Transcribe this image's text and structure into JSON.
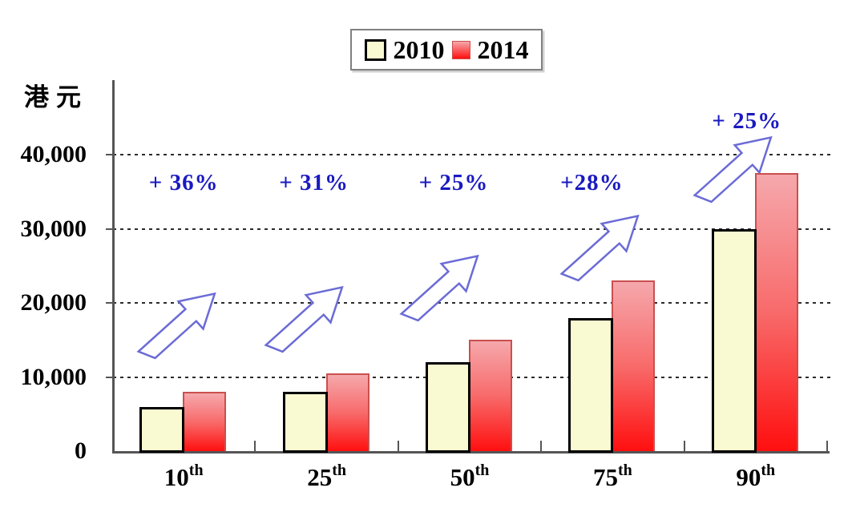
{
  "colors": {
    "bar_2010_fill": "#fafad2",
    "bar_2010_border": "#000000",
    "bar_2014_top": "#f5a8ac",
    "bar_2014_bottom": "#ff0f0f",
    "bar_2014_border": "#c9504e",
    "arrow_stroke": "#6b6bd6",
    "annotation_text": "#1a1ac0",
    "grid": "#2b2b2b",
    "axis": "#555555",
    "legend_border": "#808080"
  },
  "chart_data": {
    "type": "bar",
    "ylabel": "港元",
    "categories": [
      "10th",
      "25th",
      "50th",
      "75th",
      "90th"
    ],
    "series": [
      {
        "name": "2010",
        "values": [
          5900,
          8000,
          12000,
          18000,
          30000
        ]
      },
      {
        "name": "2014",
        "values": [
          8000,
          10500,
          15000,
          23000,
          37500
        ]
      }
    ],
    "annotations": [
      {
        "category": "10th",
        "label": "+ 36%"
      },
      {
        "category": "25th",
        "label": "+ 31%"
      },
      {
        "category": "50th",
        "label": "+ 25%"
      },
      {
        "category": "75th",
        "label": "+28%"
      },
      {
        "category": "90th",
        "label": "+ 25%"
      }
    ],
    "ylim": [
      0,
      40000
    ],
    "yticks": [
      0,
      10000,
      20000,
      30000,
      40000
    ],
    "ytick_labels": [
      "0",
      "10,000",
      "20,000",
      "30,000",
      "40,000"
    ],
    "grid": "horizontal-dotted",
    "legend_position": "top-center"
  }
}
